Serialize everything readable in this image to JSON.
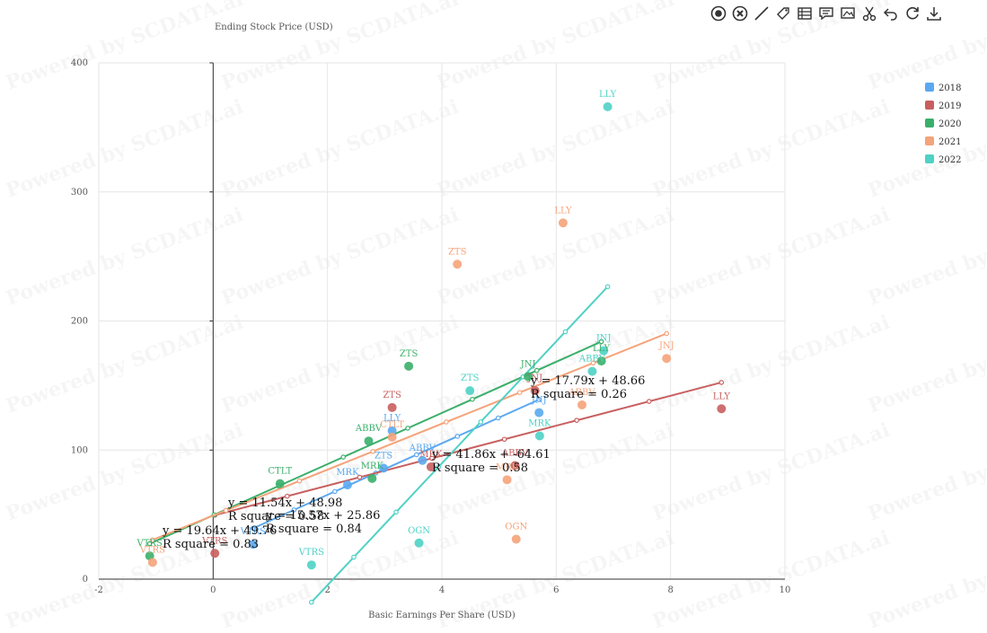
{
  "toolbar": {
    "icons": [
      "target-icon",
      "close-circle-icon",
      "line-icon",
      "tag-icon",
      "table-icon",
      "comment-icon",
      "image-icon",
      "scissors-icon",
      "undo-icon",
      "refresh-icon",
      "download-icon"
    ]
  },
  "watermark": "Powered by SCDATA.ai",
  "chart_data": {
    "type": "scatter",
    "xlabel": "Basic Earnings Per Share (USD)",
    "ylabel": "Ending Stock Price (USD)",
    "xlim": [
      -2,
      10
    ],
    "ylim": [
      0,
      400
    ],
    "xticks": [
      -2,
      0,
      2,
      4,
      6,
      8,
      10
    ],
    "yticks": [
      0,
      100,
      200,
      300,
      400
    ],
    "grid": true,
    "legend_position": "top-right",
    "series": [
      {
        "name": "2018",
        "color": "#5aa8f0",
        "points": [
          {
            "label": "LLY",
            "x": 3.13,
            "y": 115
          },
          {
            "label": "ABBV",
            "x": 3.66,
            "y": 92
          },
          {
            "label": "ZTS",
            "x": 2.98,
            "y": 86
          },
          {
            "label": "MRK",
            "x": 2.35,
            "y": 73
          },
          {
            "label": "JNJ",
            "x": 5.7,
            "y": 129
          },
          {
            "label": "VTRS",
            "x": 0.7,
            "y": 27
          }
        ],
        "trend": {
          "equation": "y = 15.57x + 25.86",
          "r_squared": "R square = 0.84",
          "x_range": [
            0.7,
            5.7
          ]
        }
      },
      {
        "name": "2019",
        "color": "#c85f5f",
        "points": [
          {
            "label": "ZTS",
            "x": 3.13,
            "y": 133
          },
          {
            "label": "JNJ",
            "x": 5.63,
            "y": 146
          },
          {
            "label": "LLY",
            "x": 8.89,
            "y": 132
          },
          {
            "label": "ABBV",
            "x": 5.28,
            "y": 88
          },
          {
            "label": "MRK",
            "x": 3.81,
            "y": 87
          },
          {
            "label": "VTRS",
            "x": 0.03,
            "y": 20
          }
        ],
        "trend": {
          "equation": "y = 11.54x + 48.98",
          "r_squared": "R square = 0.58",
          "x_range": [
            0.03,
            8.89
          ]
        }
      },
      {
        "name": "2020",
        "color": "#3aaf6a",
        "points": [
          {
            "label": "ZTS",
            "x": 3.42,
            "y": 165
          },
          {
            "label": "JNJ",
            "x": 5.51,
            "y": 157
          },
          {
            "label": "LLY",
            "x": 6.79,
            "y": 169
          },
          {
            "label": "ABBV",
            "x": 2.72,
            "y": 107
          },
          {
            "label": "CTLT",
            "x": 1.17,
            "y": 74
          },
          {
            "label": "MRK",
            "x": 2.78,
            "y": 78
          },
          {
            "label": "VTRS",
            "x": -1.11,
            "y": 18
          }
        ],
        "trend": {
          "equation": "y = 19.64x + 49.76",
          "r_squared": "R square = 0.83",
          "x_range": [
            -1.11,
            6.79
          ]
        }
      },
      {
        "name": "2021",
        "color": "#f5a37a",
        "points": [
          {
            "label": "LLY",
            "x": 6.12,
            "y": 276
          },
          {
            "label": "ZTS",
            "x": 4.27,
            "y": 244
          },
          {
            "label": "JNJ",
            "x": 7.93,
            "y": 171
          },
          {
            "label": "ABBV",
            "x": 6.45,
            "y": 135
          },
          {
            "label": "CTLT",
            "x": 3.13,
            "y": 110
          },
          {
            "label": "MRK",
            "x": 5.14,
            "y": 77
          },
          {
            "label": "OGN",
            "x": 5.3,
            "y": 31
          },
          {
            "label": "VTRS",
            "x": -1.06,
            "y": 13
          }
        ],
        "trend": {
          "equation": "y = 17.79x + 48.66",
          "r_squared": "R square = 0.26",
          "x_range": [
            -1.06,
            7.93
          ]
        }
      },
      {
        "name": "2022",
        "color": "#4fd1c5",
        "points": [
          {
            "label": "LLY",
            "x": 6.9,
            "y": 366
          },
          {
            "label": "JNJ",
            "x": 6.83,
            "y": 177
          },
          {
            "label": "ABBV",
            "x": 6.63,
            "y": 161
          },
          {
            "label": "ZTS",
            "x": 4.49,
            "y": 146
          },
          {
            "label": "MRK",
            "x": 5.71,
            "y": 111
          },
          {
            "label": "OGN",
            "x": 3.6,
            "y": 28
          },
          {
            "label": "VTRS",
            "x": 1.72,
            "y": 11
          }
        ],
        "trend": {
          "equation": "y = 41.86x + -64.61",
          "r_squared": "R square = 0.58",
          "x_range": [
            1.72,
            6.9
          ]
        }
      }
    ]
  }
}
